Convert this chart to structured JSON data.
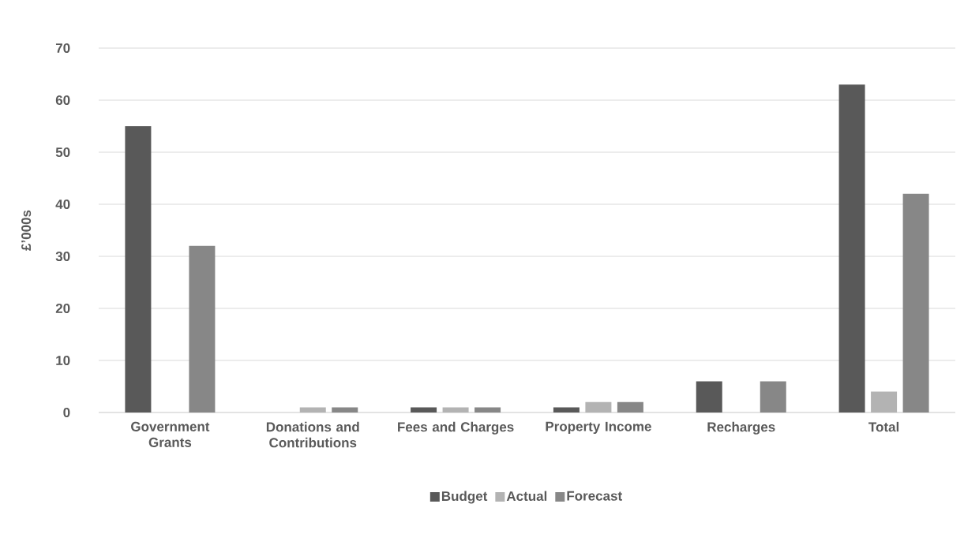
{
  "chart_data": {
    "type": "bar",
    "ylabel": "£’000s",
    "categories": [
      "Government Grants",
      "Donations and Contributions",
      "Fees and Charges",
      "Property Income",
      "Recharges",
      "Total"
    ],
    "series": [
      {
        "name": "Budget",
        "color": "#595959",
        "values": [
          55,
          0,
          1,
          1,
          6,
          63
        ]
      },
      {
        "name": "Actual",
        "color": "#b3b3b3",
        "values": [
          0,
          1,
          1,
          2,
          0,
          4
        ]
      },
      {
        "name": "Forecast",
        "color": "#878787",
        "values": [
          32,
          1,
          1,
          2,
          6,
          42
        ]
      }
    ],
    "ylim": [
      0,
      70
    ],
    "yticks": [
      0,
      10,
      20,
      30,
      40,
      50,
      60,
      70
    ],
    "grid": "y",
    "legend": "bottom"
  }
}
